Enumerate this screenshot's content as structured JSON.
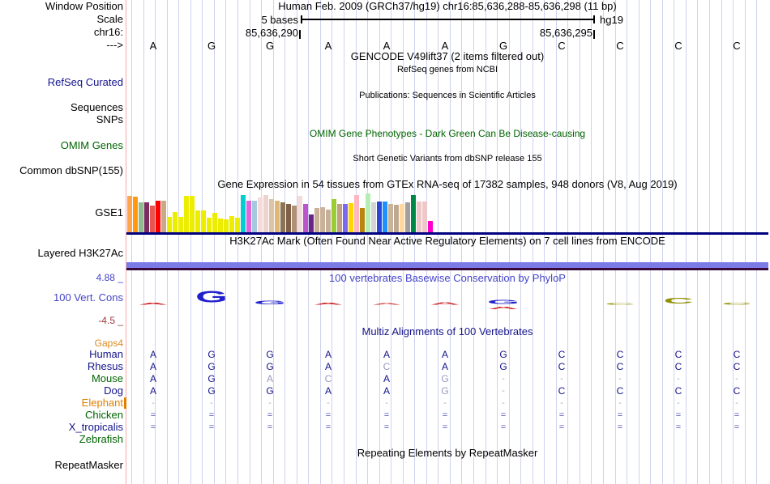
{
  "header": {
    "window_position_label": "Window Position",
    "title": "Human Feb. 2009 (GRCh37/hg19)   chr16:85,636,288-85,636,298 (11 bp)",
    "scale_label": "Scale",
    "scale_bases": "5 bases",
    "assembly": "hg19",
    "chrom_label": "chr16:",
    "pos_left": "85,636,290",
    "pos_right": "85,636,295",
    "strand": "--->",
    "sequence": [
      "A",
      "G",
      "G",
      "A",
      "A",
      "A",
      "G",
      "C",
      "C",
      "C",
      "C"
    ]
  },
  "tracks": {
    "gencode_title": "GENCODE V49lift37 (2 items filtered out)",
    "refseq_subtitle": "RefSeq genes from NCBI",
    "refseq_label": "RefSeq Curated",
    "publications_title": "Publications: Sequences in Scientific Articles",
    "sequences_label": "Sequences",
    "snps_label": "SNPs",
    "omim_title": "OMIM Gene Phenotypes - Dark Green Can Be Disease-causing",
    "omim_label": "OMIM Genes",
    "dbsnp_title": "Short Genetic Variants from dbSNP release 155",
    "dbsnp_label": "Common dbSNP(155)",
    "gtex_title": "Gene Expression in 54 tissues from GTEx RNA-seq of 17382 samples, 948 donors (V8, Aug 2019)",
    "gtex_label": "GSE1",
    "h3k27ac_title": "H3K27Ac Mark (Often Found Near Active Regulatory Elements) on 7 cell lines from ENCODE",
    "h3k27ac_label": "Layered H3K27Ac",
    "phylop_title": "100 vertebrates Basewise Conservation by PhyloP",
    "phylop_label": "100 Vert. Cons",
    "phylop_max": "4.88 _",
    "phylop_min": "-4.5 _",
    "multiz_title": "Multiz Alignments of 100 Vertebrates",
    "gaps_label": "Gaps4",
    "repeat_title": "Repeating Elements by RepeatMasker",
    "repeat_label": "RepeatMasker"
  },
  "colors": {
    "gridline": "#CFD3EE",
    "left_edge": "#F5A9A9",
    "navy_letter": "#14148C",
    "gray_letter": "#9898C0",
    "dash": "#A8A8C8",
    "equals": "#5050B4",
    "phylop_red": "#CC2020",
    "phylop_blue": "#2020CC",
    "phylop_olive": "#909000",
    "gtex_baseline": "#000080",
    "h3k27ac_bar": "#7B7BE8",
    "h3k27ac_dark": "#3A0838"
  },
  "chart_data": {
    "type": "bar",
    "title": "Gene Expression in 54 tissues from GTEx RNA-seq of 17382 samples, 948 donors (V8, Aug 2019)",
    "xlabel": "54 GTEx tissues (unlabeled at this zoom)",
    "ylabel": "relative expression (unlabeled axis)",
    "values_rel": [
      0.94,
      0.92,
      0.77,
      0.77,
      0.69,
      0.81,
      0.81,
      0.4,
      0.52,
      0.4,
      0.94,
      0.94,
      0.56,
      0.56,
      0.38,
      0.5,
      0.35,
      0.33,
      0.42,
      0.38,
      0.96,
      0.81,
      0.81,
      0.9,
      0.96,
      0.85,
      0.81,
      0.77,
      0.73,
      0.69,
      0.94,
      0.73,
      0.46,
      0.63,
      0.65,
      0.58,
      0.85,
      0.73,
      0.73,
      0.75,
      0.96,
      0.63,
      1.0,
      0.77,
      0.79,
      0.79,
      0.73,
      0.71,
      0.73,
      0.77,
      0.96,
      0.79,
      0.79,
      0.29
    ],
    "bar_colors": [
      "#FFA54F",
      "#FF9912",
      "#8FBC8F",
      "#7B2D5E",
      "#E8554D",
      "#FF0000",
      "#C8AA87",
      "#EDED00",
      "#EDED00",
      "#EDED00",
      "#EDED00",
      "#EDED00",
      "#EDED00",
      "#EDED00",
      "#EDED00",
      "#EDED00",
      "#EDED00",
      "#EDED00",
      "#EDED00",
      "#EDED00",
      "#00CED1",
      "#DD66DD",
      "#A4C8DC",
      "#F4DADA",
      "#EDD3CE",
      "#DCC3A9",
      "#DDB877",
      "#8B7355",
      "#806048",
      "#B09070",
      "#F4DADA",
      "#BB55CC",
      "#6A2585",
      "#C9B299",
      "#C9B299",
      "#C4B098",
      "#9ACD32",
      "#C0A080",
      "#7B68EE",
      "#FFD700",
      "#FFB6C1",
      "#B8860B",
      "#B4EEB4",
      "#D3D3D3",
      "#2846D8",
      "#1E90FF",
      "#C8B49A",
      "#C0A890",
      "#FFD8A0",
      "#A0A0A0",
      "#008846",
      "#EEC8C8",
      "#EEC8C8",
      "#FF00CC"
    ]
  },
  "phylop_glyphs": [
    {
      "letter": "A",
      "color": "#CC2020",
      "sy": 0.1
    },
    {
      "letter": "G",
      "color": "#2020CC",
      "sy": 0.6
    },
    {
      "letter": "G",
      "color": "#2020CC",
      "sy": 0.18
    },
    {
      "letter": "A",
      "color": "#CC2020",
      "sy": 0.1
    },
    {
      "letter": "A",
      "color": "#CC2020",
      "sy": 0.08
    },
    {
      "letter": "A",
      "color": "#CC2020",
      "sy": 0.12
    },
    {
      "letter": "G",
      "color": "#2020CC",
      "sy": 0.22,
      "neg": {
        "letter": "A",
        "color": "#CC2020",
        "sy": 0.14
      }
    },
    null,
    {
      "letter": "C",
      "color": "#909000",
      "sy": 0.08
    },
    {
      "letter": "C",
      "color": "#909000",
      "sy": 0.3
    },
    {
      "letter": "C",
      "color": "#909000",
      "sy": 0.1
    }
  ],
  "alignment": {
    "species": [
      {
        "name": "Human",
        "label_color": "#14148C",
        "cells": [
          "A",
          "G",
          "G",
          "A",
          "A",
          "A",
          "G",
          "C",
          "C",
          "C",
          "C"
        ]
      },
      {
        "name": "Rhesus",
        "label_color": "#14148C",
        "cells": [
          "A",
          "G",
          "G",
          "A",
          "C*",
          "A",
          "G",
          "C",
          "C",
          "C",
          "C"
        ]
      },
      {
        "name": "Mouse",
        "label_color": "#006400",
        "cells": [
          "A",
          "G",
          "A*",
          "C*",
          "A",
          "G*",
          "-",
          "-",
          "-",
          "-",
          "-"
        ]
      },
      {
        "name": "Dog",
        "label_color": "#14148C",
        "cells": [
          "A",
          "G",
          "G",
          "A",
          "A",
          "G*",
          "-",
          "C",
          "C",
          "C",
          "C"
        ]
      },
      {
        "name": "Elephant",
        "label_color": "#E08000",
        "cells": [
          "-",
          "-",
          "-",
          "-",
          "-",
          "-",
          "-",
          "-",
          "-",
          "-",
          "-"
        ]
      },
      {
        "name": "Chicken",
        "label_color": "#006400",
        "cells": [
          "=",
          "=",
          "=",
          "=",
          "=",
          "=",
          "=",
          "=",
          "=",
          "=",
          "="
        ]
      },
      {
        "name": "X_tropicalis",
        "label_color": "#14148C",
        "cells": [
          "=",
          "=",
          "=",
          "=",
          "=",
          "=",
          "=",
          "=",
          "=",
          "=",
          "="
        ]
      },
      {
        "name": "Zebrafish",
        "label_color": "#006400",
        "cells": [
          "",
          "",
          "",
          "",
          "",
          "",
          "",
          "",
          "",
          "",
          ""
        ]
      }
    ]
  }
}
